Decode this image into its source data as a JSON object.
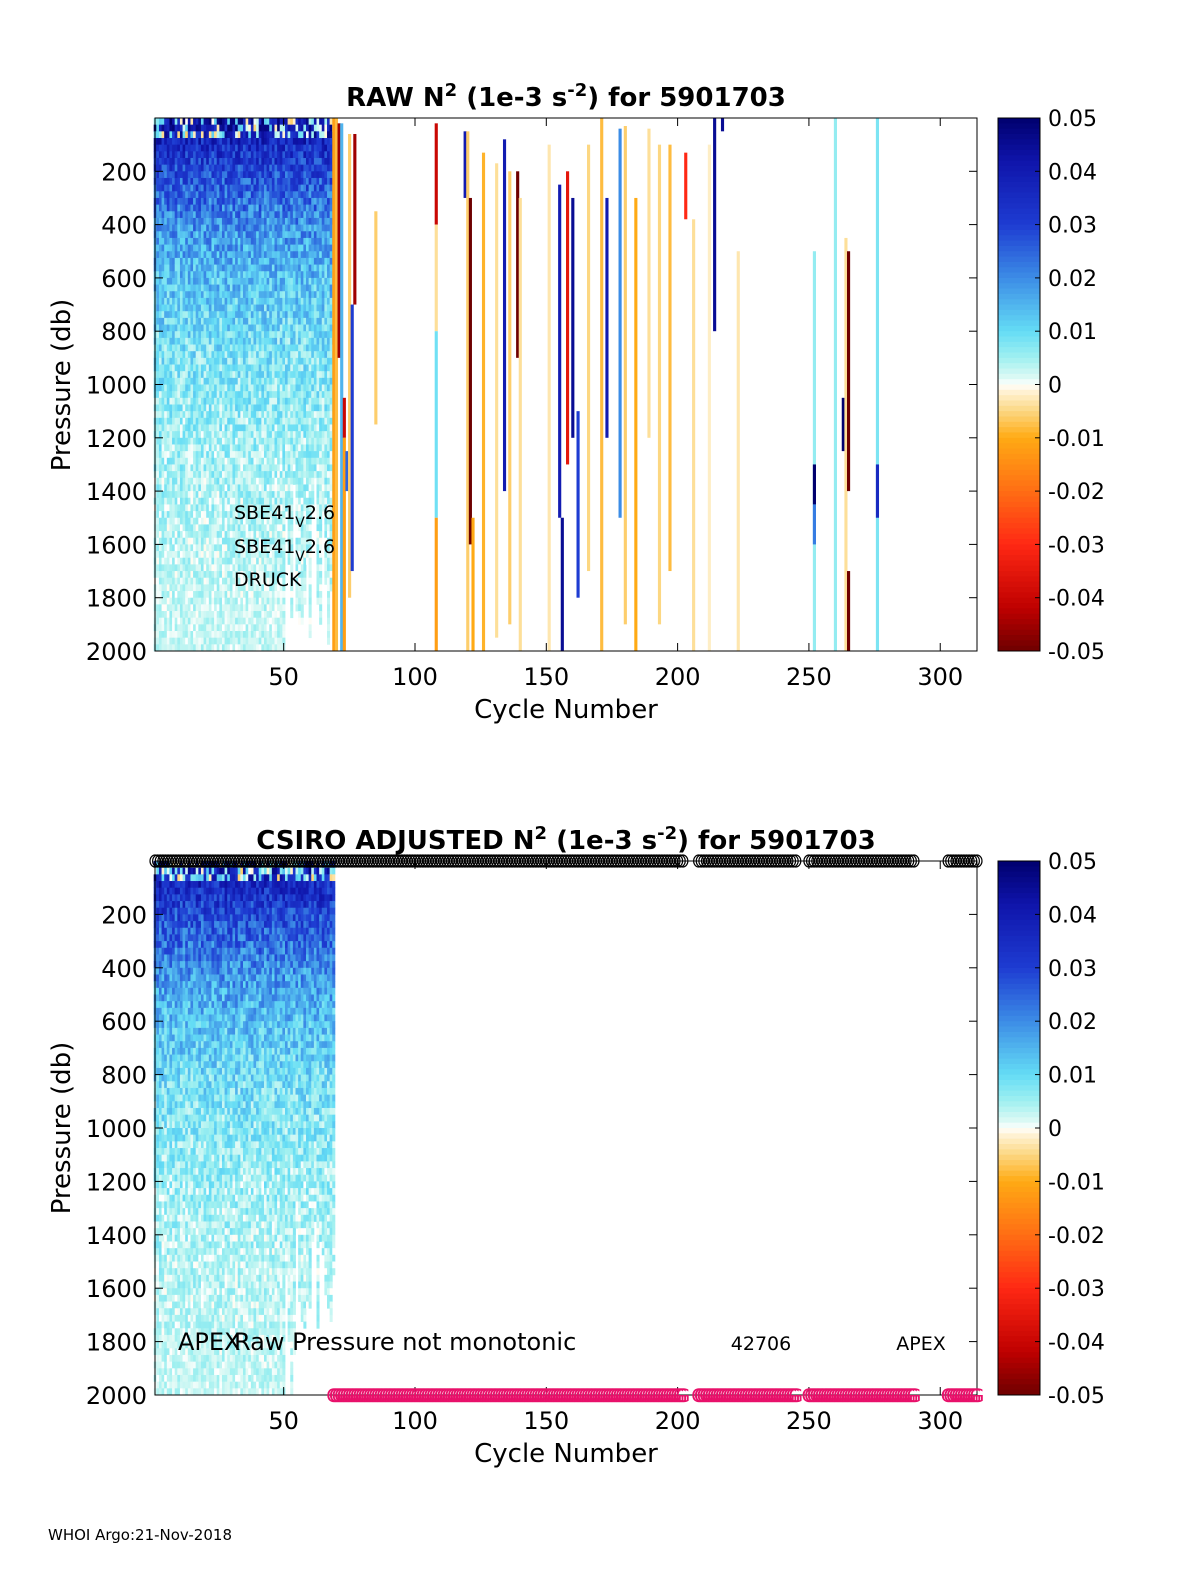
{
  "footer": "WHOI Argo:21-Nov-2018",
  "colorbar": {
    "ticks": [
      "0.05",
      "0.04",
      "0.03",
      "0.02",
      "0.01",
      "0",
      "-0.01",
      "-0.02",
      "-0.03",
      "-0.04",
      "-0.05"
    ],
    "range": [
      -0.05,
      0.05
    ],
    "colormap": "jet-like diverging (dark red to dark blue, white at 0)"
  },
  "chart_data": [
    {
      "type": "heatmap",
      "title_parts": [
        "RAW N",
        "2",
        " (1e-3 s",
        "-2",
        ") for 5901703"
      ],
      "xlabel": "Cycle Number",
      "ylabel": "Pressure (db)",
      "x_ticks": [
        50,
        100,
        150,
        200,
        250,
        300
      ],
      "y_ticks": [
        200,
        400,
        600,
        800,
        1000,
        1200,
        1400,
        1600,
        1800,
        2000
      ],
      "xlim": [
        1,
        314
      ],
      "ylim": [
        0,
        2000
      ],
      "y_reversed": true,
      "sensor_labels": [
        {
          "pre": "SBE41",
          "sub": "V",
          "post": "2.6"
        },
        {
          "pre": "SBE41",
          "sub": "V",
          "post": "2.6"
        },
        {
          "pre": "DRUCK",
          "sub": "",
          "post": ""
        }
      ],
      "dense_region": {
        "cycles": [
          1,
          69
        ],
        "n2_surface": 0.04,
        "n2_deep": 0.002
      },
      "stripes": [
        {
          "c": 69,
          "p0": 0,
          "p1": 2000,
          "v": -0.012
        },
        {
          "c": 70,
          "p0": 0,
          "p1": 2000,
          "v": -0.008
        },
        {
          "c": 71,
          "p0": 20,
          "p1": 900,
          "v": -0.045
        },
        {
          "c": 72,
          "p0": 20,
          "p1": 2000,
          "v": 0.015
        },
        {
          "c": 73,
          "p0": 1050,
          "p1": 1200,
          "v": -0.04
        },
        {
          "c": 73,
          "p0": 1200,
          "p1": 2000,
          "v": -0.012
        },
        {
          "c": 74,
          "p0": 1250,
          "p1": 1400,
          "v": 0.025
        },
        {
          "c": 75,
          "p0": 60,
          "p1": 1800,
          "v": -0.006
        },
        {
          "c": 76,
          "p0": 700,
          "p1": 1700,
          "v": 0.03
        },
        {
          "c": 77,
          "p0": 60,
          "p1": 700,
          "v": -0.045
        },
        {
          "c": 85,
          "p0": 350,
          "p1": 1150,
          "v": -0.006
        },
        {
          "c": 108,
          "p0": 20,
          "p1": 400,
          "v": -0.04
        },
        {
          "c": 108,
          "p0": 400,
          "p1": 800,
          "v": -0.004
        },
        {
          "c": 108,
          "p0": 800,
          "p1": 1500,
          "v": 0.009
        },
        {
          "c": 108,
          "p0": 1500,
          "p1": 2000,
          "v": -0.012
        },
        {
          "c": 119,
          "p0": 50,
          "p1": 300,
          "v": 0.04
        },
        {
          "c": 120,
          "p0": 50,
          "p1": 2000,
          "v": -0.006
        },
        {
          "c": 121,
          "p0": 300,
          "p1": 1600,
          "v": -0.05
        },
        {
          "c": 122,
          "p0": 1500,
          "p1": 2000,
          "v": -0.01
        },
        {
          "c": 126,
          "p0": 130,
          "p1": 2000,
          "v": -0.009
        },
        {
          "c": 131,
          "p0": 170,
          "p1": 1950,
          "v": -0.004
        },
        {
          "c": 134,
          "p0": 80,
          "p1": 1400,
          "v": 0.04
        },
        {
          "c": 136,
          "p0": 200,
          "p1": 1900,
          "v": -0.006
        },
        {
          "c": 139,
          "p0": 200,
          "p1": 900,
          "v": -0.05
        },
        {
          "c": 140,
          "p0": 300,
          "p1": 2000,
          "v": -0.004
        },
        {
          "c": 151,
          "p0": 100,
          "p1": 2000,
          "v": -0.003
        },
        {
          "c": 155,
          "p0": 250,
          "p1": 1500,
          "v": 0.04
        },
        {
          "c": 156,
          "p0": 1500,
          "p1": 2000,
          "v": 0.045
        },
        {
          "c": 158,
          "p0": 200,
          "p1": 1300,
          "v": -0.035
        },
        {
          "c": 160,
          "p0": 300,
          "p1": 1200,
          "v": 0.045
        },
        {
          "c": 162,
          "p0": 1100,
          "p1": 1800,
          "v": 0.03
        },
        {
          "c": 166,
          "p0": 100,
          "p1": 1700,
          "v": -0.005
        },
        {
          "c": 171,
          "p0": 0,
          "p1": 2000,
          "v": -0.008
        },
        {
          "c": 173,
          "p0": 300,
          "p1": 1200,
          "v": 0.04
        },
        {
          "c": 178,
          "p0": 40,
          "p1": 1500,
          "v": 0.02
        },
        {
          "c": 180,
          "p0": 30,
          "p1": 1900,
          "v": -0.006
        },
        {
          "c": 184,
          "p0": 300,
          "p1": 2000,
          "v": -0.01
        },
        {
          "c": 189,
          "p0": 40,
          "p1": 1200,
          "v": -0.004
        },
        {
          "c": 193,
          "p0": 100,
          "p1": 1900,
          "v": -0.005
        },
        {
          "c": 197,
          "p0": 100,
          "p1": 1700,
          "v": -0.008
        },
        {
          "c": 203,
          "p0": 130,
          "p1": 380,
          "v": -0.03
        },
        {
          "c": 206,
          "p0": 380,
          "p1": 2000,
          "v": -0.004
        },
        {
          "c": 212,
          "p0": 100,
          "p1": 2000,
          "v": -0.002
        },
        {
          "c": 214,
          "p0": 0,
          "p1": 800,
          "v": 0.045
        },
        {
          "c": 217,
          "p0": 0,
          "p1": 50,
          "v": 0.045
        },
        {
          "c": 223,
          "p0": 500,
          "p1": 2000,
          "v": -0.003
        },
        {
          "c": 252,
          "p0": 500,
          "p1": 2000,
          "v": 0.006
        },
        {
          "c": 252,
          "p0": 1300,
          "p1": 1450,
          "v": 0.05
        },
        {
          "c": 252,
          "p0": 1450,
          "p1": 1600,
          "v": 0.022
        },
        {
          "c": 260,
          "p0": 0,
          "p1": 2000,
          "v": 0.006
        },
        {
          "c": 263,
          "p0": 1050,
          "p1": 1250,
          "v": 0.05
        },
        {
          "c": 264,
          "p0": 450,
          "p1": 2000,
          "v": -0.004
        },
        {
          "c": 265,
          "p0": 500,
          "p1": 1400,
          "v": -0.05
        },
        {
          "c": 265,
          "p0": 1700,
          "p1": 2000,
          "v": -0.05
        },
        {
          "c": 276,
          "p0": 0,
          "p1": 2000,
          "v": 0.008
        },
        {
          "c": 276,
          "p0": 1300,
          "p1": 1500,
          "v": 0.035
        }
      ]
    },
    {
      "type": "heatmap",
      "title_parts": [
        "CSIRO  ADJUSTED N",
        "2",
        " (1e-3 s",
        "-2",
        ") for 5901703"
      ],
      "xlabel": "Cycle Number",
      "ylabel": "Pressure (db)",
      "x_ticks": [
        50,
        100,
        150,
        200,
        250,
        300
      ],
      "y_ticks": [
        200,
        400,
        600,
        800,
        1000,
        1200,
        1400,
        1600,
        1800,
        2000
      ],
      "xlim": [
        1,
        314
      ],
      "ylim": [
        0,
        2000
      ],
      "y_reversed": true,
      "dense_region": {
        "cycles": [
          1,
          69
        ],
        "n2_surface": 0.04,
        "n2_deep": 0.002
      },
      "annotations": [
        "APEX",
        "Raw Pressure not monotonic",
        "42706",
        "APEX"
      ],
      "marker_top_symbol": "O",
      "marker_bottom_symbol": "G",
      "marker_cycle_ranges": [
        [
          1,
          202
        ],
        [
          208,
          245
        ],
        [
          250,
          290
        ],
        [
          303,
          314
        ]
      ]
    }
  ]
}
